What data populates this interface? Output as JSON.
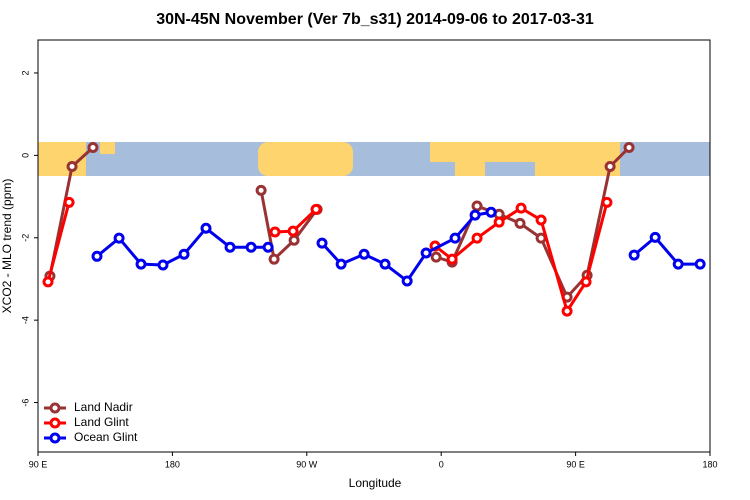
{
  "chart_data": {
    "type": "line",
    "title": "30N-45N November (Ver 7b_s31)   2014-09-06 to 2017-03-31",
    "x_label": "Longitude",
    "y_label": "XCO2 - MLO trend (ppm)",
    "xlim": [
      90,
      540
    ],
    "ylim": [
      -7.2,
      2.8
    ],
    "xticks": [
      {
        "value": 90,
        "label": "90 E"
      },
      180,
      {
        "value": 270,
        "label": "90 W"
      },
      {
        "value": 360,
        "label": "0"
      },
      {
        "value": 450,
        "label": "90 E"
      },
      {
        "value": 540,
        "label": "180"
      }
    ],
    "yticks": [
      2,
      0,
      -2,
      -4,
      -6
    ],
    "legend": "bottom-left",
    "series": [
      {
        "name": "Land Nadir",
        "color": "#993333",
        "x": [
          98,
          112.8,
          126.8,
          null,
          239.4,
          248.1,
          261.5,
          276.9,
          null,
          356.6,
          367.3,
          384,
          398.8,
          412.8,
          426.9,
          444.3,
          457.7,
          473.1,
          485.8
        ],
        "values": [
          -2.93,
          -0.27,
          0.19,
          null,
          -0.85,
          -2.52,
          -2.06,
          -1.31,
          null,
          -2.47,
          -2.59,
          -1.23,
          -1.43,
          -1.65,
          -2.01,
          -3.44,
          -2.91,
          -0.27,
          0.19
        ]
      },
      {
        "name": "Land Glint",
        "color": "#ff0000",
        "x": [
          96.7,
          110.8,
          null,
          248.7,
          260.8,
          276.2,
          null,
          355.9,
          367.3,
          384,
          398.8,
          413.5,
          426.9,
          444.3,
          457,
          471
        ],
        "values": [
          -3.07,
          -1.14,
          null,
          -1.86,
          -1.84,
          -1.31,
          null,
          -2.2,
          -2.52,
          -2.01,
          -1.62,
          -1.28,
          -1.57,
          -3.78,
          -3.07,
          -1.14
        ]
      },
      {
        "name": "Ocean Glint",
        "color": "#0000ee",
        "x": [
          129.5,
          144.3,
          159,
          173.7,
          187.8,
          202.5,
          218.6,
          232.7,
          244.1,
          null,
          280.2,
          293,
          308.4,
          322.4,
          337.2,
          349.9,
          369.3,
          382.7,
          393.4,
          null,
          489.2,
          503.3,
          518.7,
          533.4
        ],
        "values": [
          -2.45,
          -2.01,
          -2.64,
          -2.66,
          -2.4,
          -1.77,
          -2.23,
          -2.23,
          -2.23,
          null,
          -2.13,
          -2.64,
          -2.4,
          -2.64,
          -3.05,
          -2.37,
          -2.01,
          -1.45,
          -1.38,
          null,
          -2.42,
          -1.99,
          -2.64,
          -2.64
        ]
      }
    ]
  }
}
